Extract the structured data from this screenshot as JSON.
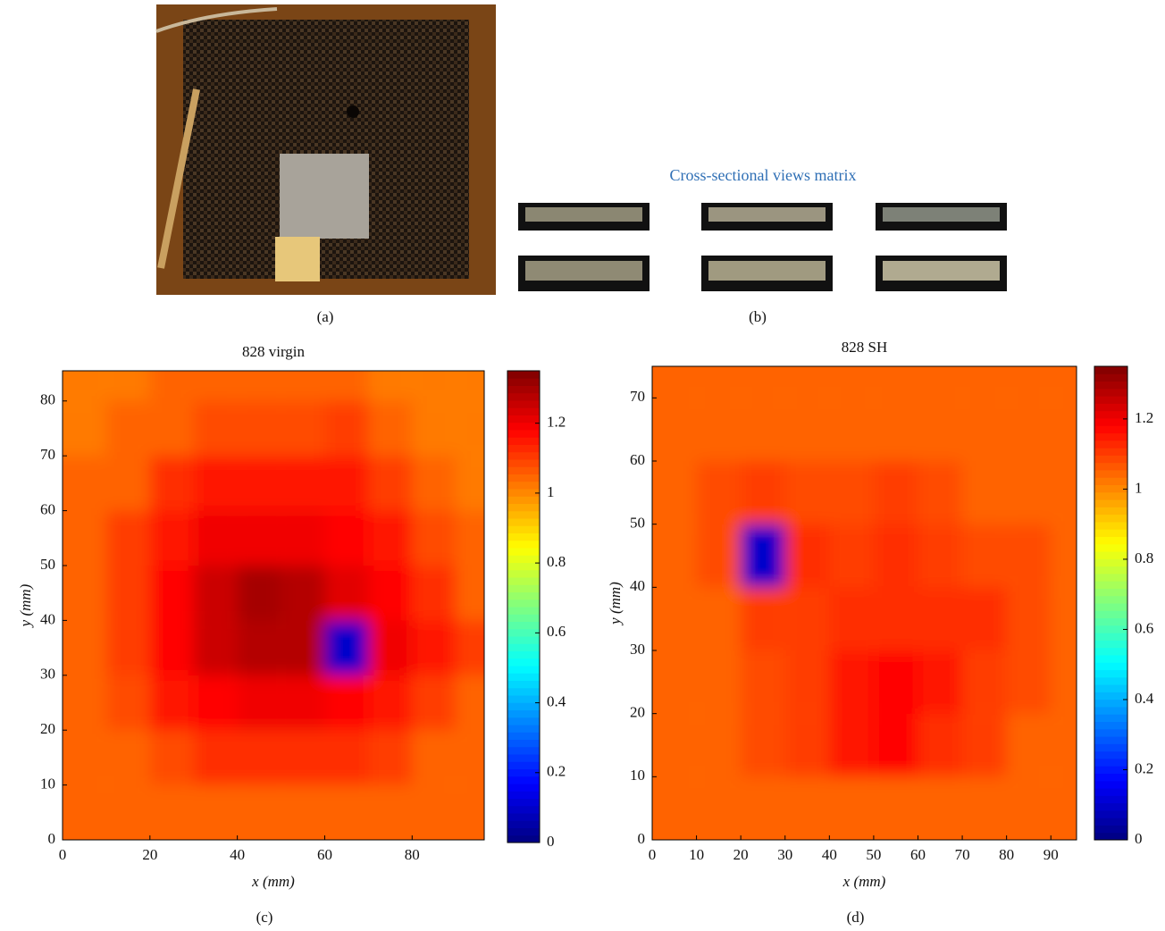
{
  "panels": {
    "a": {
      "label": "(a)"
    },
    "b": {
      "title": "Cross-sectional views matrix",
      "label": "(b)"
    }
  },
  "chart_data": [
    {
      "type": "heatmap",
      "title": "828 virgin",
      "label": "(c)",
      "xlabel": "x (mm)",
      "ylabel": "y (mm)",
      "x": [
        5,
        15,
        25,
        35,
        45,
        55,
        65,
        75,
        85,
        95
      ],
      "y": [
        5,
        15,
        25,
        35,
        45,
        55,
        65,
        75,
        85
      ],
      "values": [
        [
          1.05,
          1.05,
          1.05,
          1.05,
          1.05,
          1.05,
          1.05,
          1.05,
          1.05,
          1.05
        ],
        [
          1.05,
          1.05,
          1.08,
          1.12,
          1.12,
          1.12,
          1.12,
          1.1,
          1.05,
          1.05
        ],
        [
          1.05,
          1.08,
          1.15,
          1.18,
          1.2,
          1.2,
          1.18,
          1.15,
          1.1,
          1.05
        ],
        [
          1.05,
          1.1,
          1.18,
          1.25,
          1.28,
          1.28,
          0.1,
          1.2,
          1.15,
          1.1
        ],
        [
          1.05,
          1.1,
          1.18,
          1.25,
          1.3,
          1.28,
          1.22,
          1.18,
          1.12,
          1.05
        ],
        [
          1.05,
          1.1,
          1.15,
          1.2,
          1.2,
          1.2,
          1.18,
          1.15,
          1.08,
          1.05
        ],
        [
          1.05,
          1.05,
          1.12,
          1.15,
          1.15,
          1.15,
          1.15,
          1.1,
          1.05,
          1.02
        ],
        [
          1.02,
          1.05,
          1.05,
          1.08,
          1.08,
          1.08,
          1.1,
          1.05,
          1.02,
          1.02
        ],
        [
          1.02,
          1.02,
          1.05,
          1.05,
          1.05,
          1.05,
          1.05,
          1.02,
          1.02,
          1.02
        ]
      ],
      "xlim": [
        0,
        96.5
      ],
      "ylim": [
        0,
        85.5
      ],
      "xticks": [
        0,
        20,
        40,
        60,
        80
      ],
      "yticks": [
        0,
        10,
        20,
        30,
        40,
        50,
        60,
        70,
        80
      ],
      "clim": [
        0,
        1.35
      ],
      "cticks": [
        0,
        0.2,
        0.4,
        0.6,
        0.8,
        1,
        1.2
      ],
      "colormap": "jet"
    },
    {
      "type": "heatmap",
      "title": "828 SH",
      "label": "(d)",
      "xlabel": "x (mm)",
      "ylabel": "y (mm)",
      "x": [
        5,
        15,
        25,
        35,
        45,
        55,
        65,
        75,
        85,
        95
      ],
      "y": [
        5,
        15,
        25,
        35,
        45,
        55,
        65,
        75
      ],
      "values": [
        [
          1.05,
          1.05,
          1.05,
          1.05,
          1.05,
          1.05,
          1.05,
          1.05,
          1.05,
          1.05
        ],
        [
          1.05,
          1.05,
          1.08,
          1.1,
          1.15,
          1.18,
          1.12,
          1.1,
          1.05,
          1.05
        ],
        [
          1.05,
          1.05,
          1.08,
          1.1,
          1.15,
          1.18,
          1.15,
          1.1,
          1.08,
          1.05
        ],
        [
          1.05,
          1.05,
          1.1,
          1.1,
          1.12,
          1.12,
          1.12,
          1.12,
          1.08,
          1.05
        ],
        [
          1.05,
          1.08,
          0.1,
          1.12,
          1.1,
          1.12,
          1.1,
          1.08,
          1.08,
          1.05
        ],
        [
          1.05,
          1.08,
          1.1,
          1.08,
          1.08,
          1.1,
          1.08,
          1.05,
          1.05,
          1.05
        ],
        [
          1.05,
          1.05,
          1.05,
          1.05,
          1.05,
          1.05,
          1.05,
          1.05,
          1.05,
          1.05
        ],
        [
          1.05,
          1.05,
          1.05,
          1.05,
          1.05,
          1.05,
          1.05,
          1.05,
          1.05,
          1.05
        ]
      ],
      "xlim": [
        0,
        95.8
      ],
      "ylim": [
        0,
        75
      ],
      "xticks": [
        0,
        10,
        20,
        30,
        40,
        50,
        60,
        70,
        80,
        90
      ],
      "yticks": [
        0,
        10,
        20,
        30,
        40,
        50,
        60,
        70
      ],
      "clim": [
        0,
        1.35
      ],
      "cticks": [
        0,
        0.2,
        0.4,
        0.6,
        0.8,
        1,
        1.2
      ],
      "colormap": "jet"
    }
  ]
}
